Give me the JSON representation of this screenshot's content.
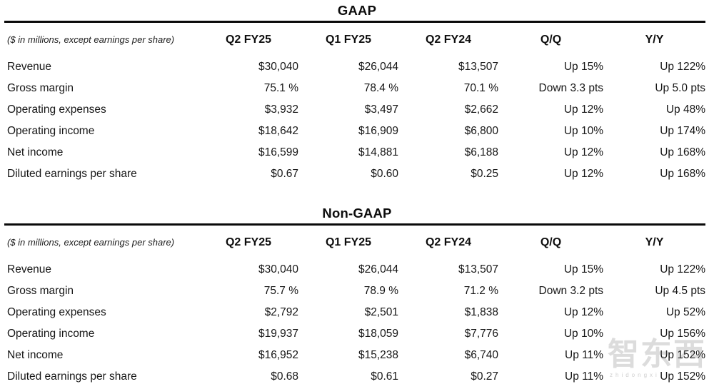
{
  "page": {
    "background": "#ffffff",
    "text_color": "#161616",
    "rule_color": "#0a0a0a"
  },
  "note": "($ in millions, except earnings per share)",
  "columns": [
    "Q2 FY25",
    "Q1 FY25",
    "Q2 FY24",
    "Q/Q",
    "Y/Y"
  ],
  "tables": [
    {
      "title": "GAAP",
      "rows": [
        {
          "label": "Revenue",
          "values": [
            "$30,040",
            "$26,044",
            "$13,507",
            "Up 15%",
            "Up 122%"
          ]
        },
        {
          "label": "Gross margin",
          "values": [
            "75.1 %",
            "78.4 %",
            "70.1 %",
            "Down 3.3 pts",
            "Up 5.0 pts"
          ]
        },
        {
          "label": "Operating expenses",
          "values": [
            "$3,932",
            "$3,497",
            "$2,662",
            "Up 12%",
            "Up 48%"
          ]
        },
        {
          "label": "Operating income",
          "values": [
            "$18,642",
            "$16,909",
            "$6,800",
            "Up 10%",
            "Up 174%"
          ]
        },
        {
          "label": "Net income",
          "values": [
            "$16,599",
            "$14,881",
            "$6,188",
            "Up 12%",
            "Up 168%"
          ]
        },
        {
          "label": "Diluted earnings per share",
          "values": [
            "$0.67",
            "$0.60",
            "$0.25",
            "Up 12%",
            "Up 168%"
          ]
        }
      ]
    },
    {
      "title": "Non-GAAP",
      "rows": [
        {
          "label": "Revenue",
          "values": [
            "$30,040",
            "$26,044",
            "$13,507",
            "Up 15%",
            "Up 122%"
          ]
        },
        {
          "label": "Gross margin",
          "values": [
            "75.7 %",
            "78.9 %",
            "71.2 %",
            "Down 3.2 pts",
            "Up 4.5 pts"
          ]
        },
        {
          "label": "Operating expenses",
          "values": [
            "$2,792",
            "$2,501",
            "$1,838",
            "Up 12%",
            "Up 52%"
          ]
        },
        {
          "label": "Operating income",
          "values": [
            "$19,937",
            "$18,059",
            "$7,776",
            "Up 10%",
            "Up 156%"
          ]
        },
        {
          "label": "Net income",
          "values": [
            "$16,952",
            "$15,238",
            "$6,740",
            "Up 11%",
            "Up 152%"
          ]
        },
        {
          "label": "Diluted earnings per share",
          "values": [
            "$0.68",
            "$0.61",
            "$0.27",
            "Up 11%",
            "Up 152%"
          ]
        }
      ]
    }
  ],
  "watermark": {
    "text": "智东西",
    "subtext": "zhidongxi"
  }
}
